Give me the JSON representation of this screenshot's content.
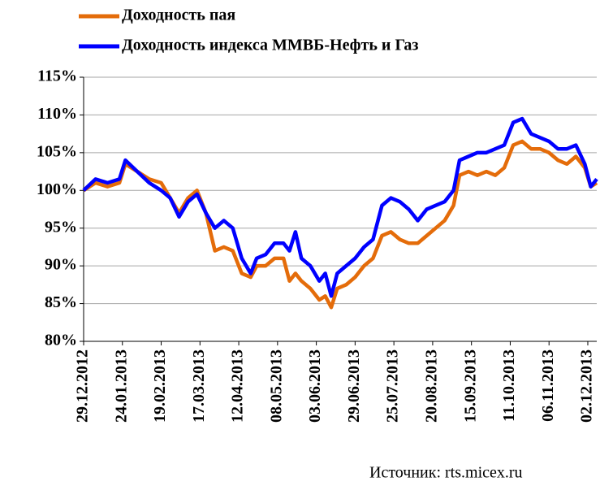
{
  "chart_data": {
    "type": "line",
    "annotation": "Источник: rts.micex.ru",
    "x": [
      0,
      8,
      16,
      24,
      28,
      36,
      44,
      52,
      58,
      64,
      70,
      76,
      82,
      88,
      94,
      100,
      106,
      112,
      116,
      122,
      128,
      134,
      138,
      142,
      146,
      152,
      158,
      162,
      166,
      170,
      176,
      182,
      188,
      194,
      200,
      206,
      212,
      218,
      224,
      230,
      236,
      242,
      248,
      252,
      258,
      264,
      270,
      276,
      282,
      288,
      294,
      300,
      306,
      312,
      318,
      324,
      330,
      336,
      340,
      344
    ],
    "series": [
      {
        "name": "Доходность пая",
        "color": "#e46c0a",
        "values": [
          100,
          101,
          100.5,
          101,
          103.5,
          102.5,
          101.5,
          101,
          99,
          97,
          99,
          100,
          97,
          92,
          92.5,
          92,
          89,
          88.5,
          90,
          90,
          91,
          91,
          88,
          89,
          88,
          87,
          85.5,
          86,
          84.5,
          87,
          87.5,
          88.5,
          90,
          91,
          94,
          94.5,
          93.5,
          93,
          93,
          94,
          95,
          96,
          98,
          102,
          102.5,
          102,
          102.5,
          102,
          103,
          106,
          106.5,
          105.5,
          105.5,
          105,
          104,
          103.5,
          104.5,
          103,
          100.5,
          101
        ]
      },
      {
        "name": "Доходность индекса ММВБ-Нефть и Газ",
        "color": "#0000ff",
        "values": [
          100,
          101.5,
          101,
          101.5,
          104,
          102.5,
          101,
          100,
          99,
          96.5,
          98.5,
          99.5,
          97,
          95,
          96,
          95,
          91,
          89,
          91,
          91.5,
          93,
          93,
          92,
          94.5,
          91,
          90,
          88,
          89,
          86,
          89,
          90,
          91,
          92.5,
          93.5,
          98,
          99,
          98.5,
          97.5,
          96,
          97.5,
          98,
          98.5,
          100,
          104,
          104.5,
          105,
          105,
          105.5,
          106,
          109,
          109.5,
          107.5,
          107,
          106.5,
          105.5,
          105.5,
          106,
          103.5,
          100.5,
          101.5
        ]
      }
    ],
    "xlim": [
      0,
      344
    ],
    "xticks": [
      {
        "value": 0,
        "label": "29.12.2012"
      },
      {
        "value": 26,
        "label": "24.01.2013"
      },
      {
        "value": 52,
        "label": "19.02.2013"
      },
      {
        "value": 78,
        "label": "17.03.2013"
      },
      {
        "value": 104,
        "label": "12.04.2013"
      },
      {
        "value": 130,
        "label": "08.05.2013"
      },
      {
        "value": 156,
        "label": "03.06.2013"
      },
      {
        "value": 182,
        "label": "29.06.2013"
      },
      {
        "value": 208,
        "label": "25.07.2013"
      },
      {
        "value": 234,
        "label": "20.08.2013"
      },
      {
        "value": 260,
        "label": "15.09.2013"
      },
      {
        "value": 286,
        "label": "11.10.2013"
      },
      {
        "value": 312,
        "label": "06.11.2013"
      },
      {
        "value": 338,
        "label": "02.12.2013"
      }
    ],
    "ylim": [
      80,
      115
    ],
    "yticks": [
      {
        "value": 80,
        "label": "80%"
      },
      {
        "value": 85,
        "label": "85%"
      },
      {
        "value": 90,
        "label": "90%"
      },
      {
        "value": 95,
        "label": "95%"
      },
      {
        "value": 100,
        "label": "100%"
      },
      {
        "value": 105,
        "label": "105%"
      },
      {
        "value": 110,
        "label": "110%"
      },
      {
        "value": 115,
        "label": "115%"
      }
    ],
    "grid": true
  }
}
